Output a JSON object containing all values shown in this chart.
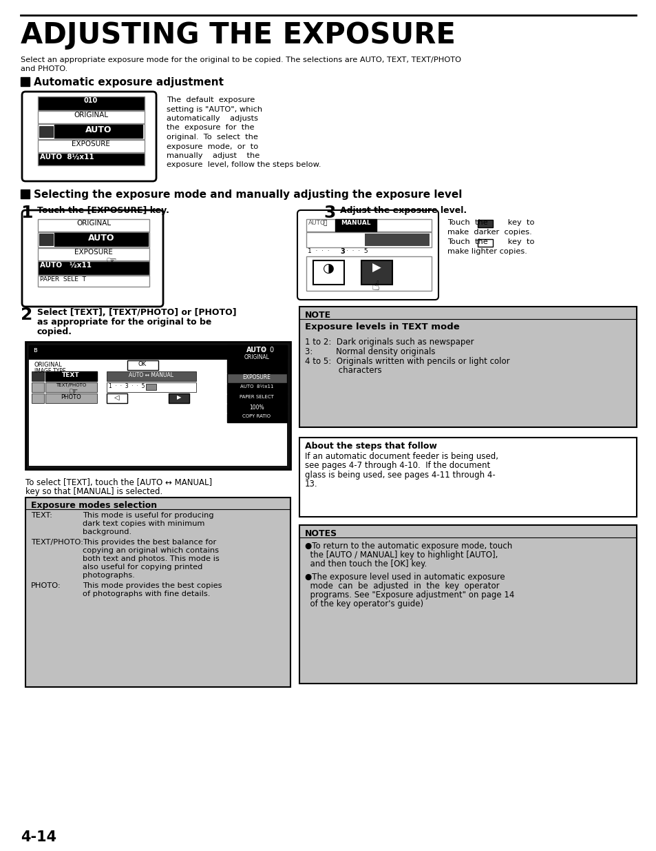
{
  "title": "ADJUSTING THE EXPOSURE",
  "subtitle": "Select an appropriate exposure mode for the original to be copied. The selections are AUTO, TEXT, TEXT/PHOTO\nand PHOTO.",
  "section1_header": "Automatic exposure adjustment",
  "section1_desc": "The  default  exposure\nsetting is \"AUTO\", which\nautomatically    adjusts\nthe  exposure  for  the\noriginal.  To  select  the\nexposure  mode,  or  to\nmanually    adjust    the\nexposure  level, follow the steps below.",
  "section2_header": "Selecting the exposure mode and manually adjusting the exposure level",
  "step1_text": "Touch the [EXPOSURE] key.",
  "step2_text": "Select [TEXT], [TEXT/PHOTO] or [PHOTO]\nas appropriate for the original to be\ncopied.",
  "step2_subtext": "To select [TEXT], touch the [AUTO ↔ MANUAL]\nkey so that [MANUAL] is selected.",
  "step3_text": "Adjust the exposure level.",
  "step3_desc_line1": "Touch  the        key  to",
  "step3_desc_line2": "make  darker  copies.",
  "step3_desc_line3": "Touch  the        key  to",
  "step3_desc_line4": "make lighter copies.",
  "exposure_modes_title": "Exposure modes selection",
  "exposure_modes": [
    [
      "TEXT:",
      "This mode is useful for producing\ndark text copies with minimum\nbackground."
    ],
    [
      "TEXT/PHOTO:",
      "This provides the best balance for\ncopying an original which contains\nboth text and photos. This mode is\nalso useful for copying printed\nphotographs."
    ],
    [
      "PHOTO:",
      "This mode provides the best copies\nof photographs with fine details."
    ]
  ],
  "note_title": "NOTE",
  "note_bold": "Exposure levels in TEXT mode",
  "note_item1": "1 to 2:  Dark originals such as newspaper",
  "note_item2": "3:         Normal density originals",
  "note_item3": "4 to 5:  Originals written with pencils or light color",
  "note_item3b": "             characters",
  "about_title": "About the steps that follow",
  "about_text": "If an automatic document feeder is being used,\nsee pages 4-7 through 4-10.  If the document\nglass is being used, see pages 4-11 through 4-\n13.",
  "notes2_title": "NOTES",
  "notes2_item1a": "●To return to the automatic exposure mode, touch",
  "notes2_item1b": "  the [AUTO / MANUAL] key to highlight [AUTO],",
  "notes2_item1c": "  and then touch the [OK] key.",
  "notes2_item2a": "●The exposure level used in automatic exposure",
  "notes2_item2b": "  mode  can  be  adjusted  in  the  key  operator",
  "notes2_item2c": "  programs. See \"Exposure adjustment\" on page 14",
  "notes2_item2d": "  of the key operator's guide)",
  "page_num": "4-14",
  "bg_color": "#ffffff",
  "gray_bg": "#c0c0c0",
  "border_color": "#000000"
}
